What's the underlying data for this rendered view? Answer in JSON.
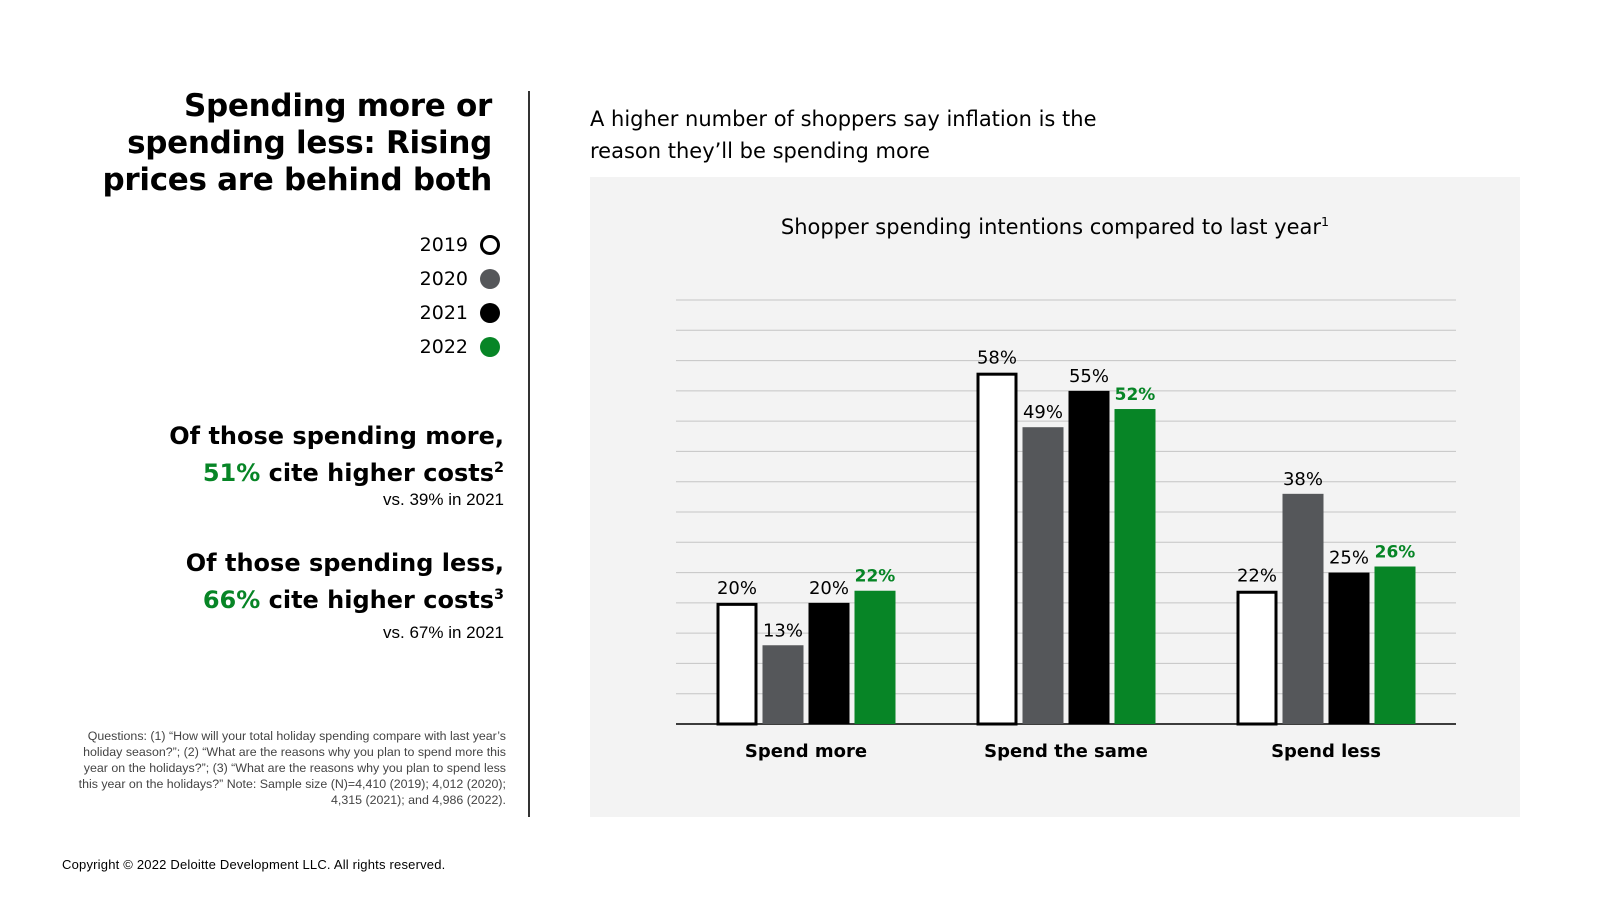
{
  "title": "Spending more or spending less: Rising prices are behind both",
  "legend": [
    {
      "label": "2019",
      "color": "#ffffff",
      "border": "#000000"
    },
    {
      "label": "2020",
      "color": "#55575a",
      "border": "#55575a"
    },
    {
      "label": "2021",
      "color": "#000000",
      "border": "#000000"
    },
    {
      "label": "2022",
      "color": "#078526",
      "border": "#078526"
    }
  ],
  "stats": {
    "more": {
      "line1": "Of those spending more,",
      "pct": "51%",
      "rest": " cite higher costs",
      "sup": "2",
      "sub": "vs. 39% in 2021"
    },
    "less": {
      "line1": "Of those spending less,",
      "pct": "66%",
      "rest": " cite higher costs",
      "sup": "3",
      "sub": "vs. 67% in 2021"
    }
  },
  "footnote": "Questions: (1) “How will your total holiday spending compare with last year’s holiday season?”; (2) “What are the reasons why you plan to spend more this year on the holidays?”; (3) “What are the reasons why you plan to spend less this year on the holidays?” Note: Sample size (N)=4,410 (2019); 4,012 (2020); 4,315 (2021); and 4,986 (2022).",
  "copyright": "Copyright © 2022 Deloitte Development LLC. All rights reserved.",
  "subtitle": "A higher number of shoppers say inflation is the reason they’ll be spending more",
  "chart_title": "Shopper spending intentions compared to last year",
  "chart_title_sup": "1",
  "chart_data": {
    "type": "bar",
    "title": "Shopper spending intentions compared to last year",
    "categories": [
      "Spend more",
      "Spend the same",
      "Spend less"
    ],
    "series": [
      {
        "name": "2019",
        "values": [
          20,
          58,
          22
        ]
      },
      {
        "name": "2020",
        "values": [
          13,
          49,
          38
        ]
      },
      {
        "name": "2021",
        "values": [
          20,
          55,
          25
        ]
      },
      {
        "name": "2022",
        "values": [
          22,
          52,
          26
        ]
      }
    ],
    "ylim": [
      0,
      70
    ],
    "grid": true,
    "value_labels": [
      "20%",
      "13%",
      "20%",
      "22%",
      "58%",
      "49%",
      "55%",
      "52%",
      "22%",
      "38%",
      "25%",
      "26%"
    ]
  }
}
